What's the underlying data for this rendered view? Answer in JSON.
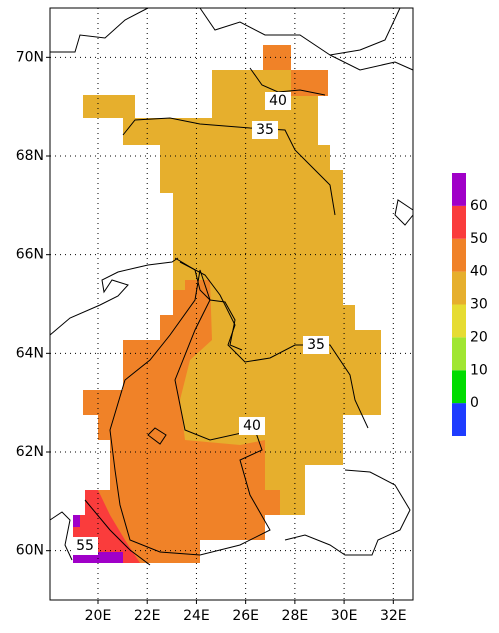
{
  "map": {
    "lat_range": [
      59,
      71
    ],
    "lon_range": [
      18.05,
      32.8
    ],
    "lat_ticks": [
      {
        "value": 60,
        "label": "60N"
      },
      {
        "value": 62,
        "label": "62N"
      },
      {
        "value": 64,
        "label": "64N"
      },
      {
        "value": 66,
        "label": "66N"
      },
      {
        "value": 68,
        "label": "68N"
      },
      {
        "value": 70,
        "label": "70N"
      }
    ],
    "lon_ticks": [
      {
        "value": 20,
        "label": "20E"
      },
      {
        "value": 22,
        "label": "22E"
      },
      {
        "value": 24,
        "label": "24E"
      },
      {
        "value": 26,
        "label": "26E"
      },
      {
        "value": 28,
        "label": "28E"
      },
      {
        "value": 30,
        "label": "30E"
      },
      {
        "value": 32,
        "label": "32E"
      }
    ],
    "grid": true,
    "contour_labels": [
      40,
      35,
      35,
      40,
      55
    ],
    "colorbar": {
      "labels": [
        0,
        10,
        20,
        30,
        40,
        50,
        60
      ],
      "colors": [
        "#1e3cff",
        "#00dc00",
        "#a0e632",
        "#e6dc32",
        "#e6af2d",
        "#f08228",
        "#fa3c3c",
        "#a000c8"
      ]
    }
  }
}
